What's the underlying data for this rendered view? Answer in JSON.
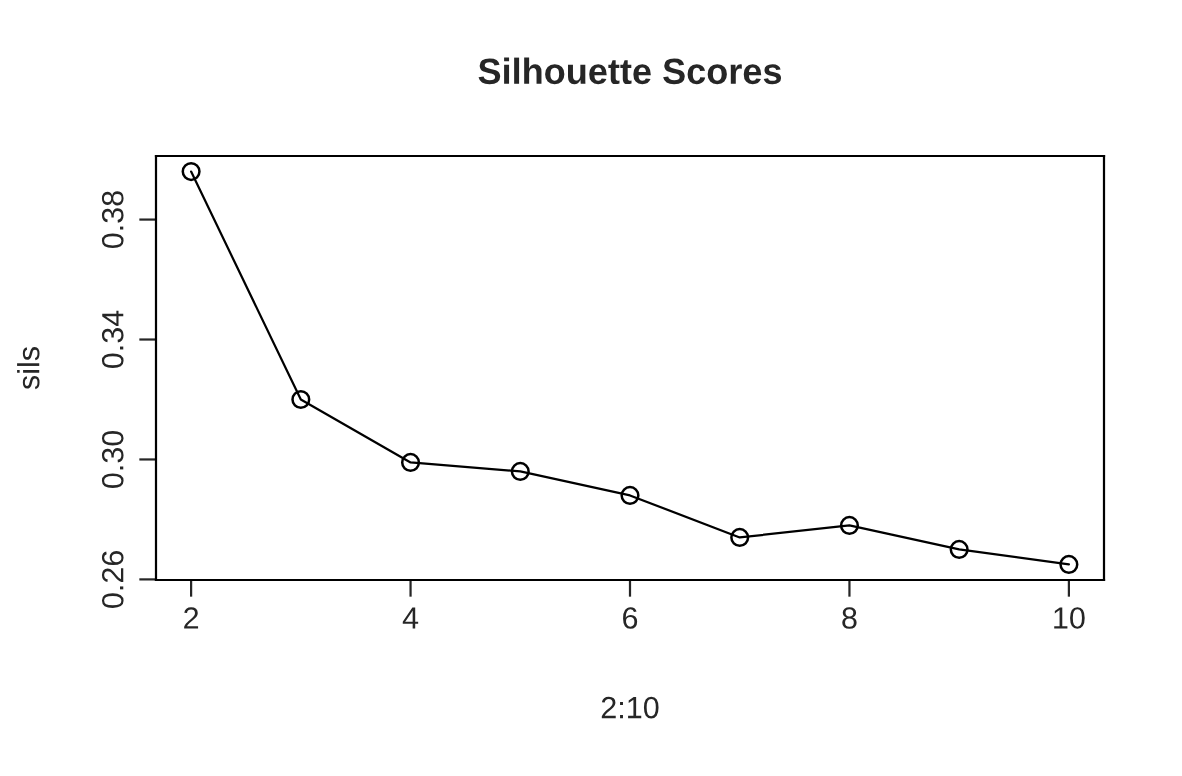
{
  "chart_data": {
    "type": "line",
    "title": "Silhouette Scores",
    "xlabel": "2:10",
    "ylabel": "sils",
    "x": [
      2,
      3,
      4,
      5,
      6,
      7,
      8,
      9,
      10
    ],
    "series": [
      {
        "color": "#000000",
        "values": [
          0.396,
          0.32,
          0.299,
          0.296,
          0.288,
          0.274,
          0.278,
          0.27,
          0.265
        ]
      }
    ],
    "marker": "circle",
    "line_style": "solid",
    "grid": false,
    "legend": false,
    "xlim": [
      1.68,
      10.32
    ],
    "ylim": [
      0.2598,
      0.4012
    ],
    "xticks": [
      2,
      4,
      6,
      8,
      10
    ],
    "yticks": [
      {
        "value": 0.26,
        "label": "0.26"
      },
      {
        "value": 0.3,
        "label": "0.30"
      },
      {
        "value": 0.34,
        "label": "0.34"
      },
      {
        "value": 0.38,
        "label": "0.38"
      }
    ]
  }
}
